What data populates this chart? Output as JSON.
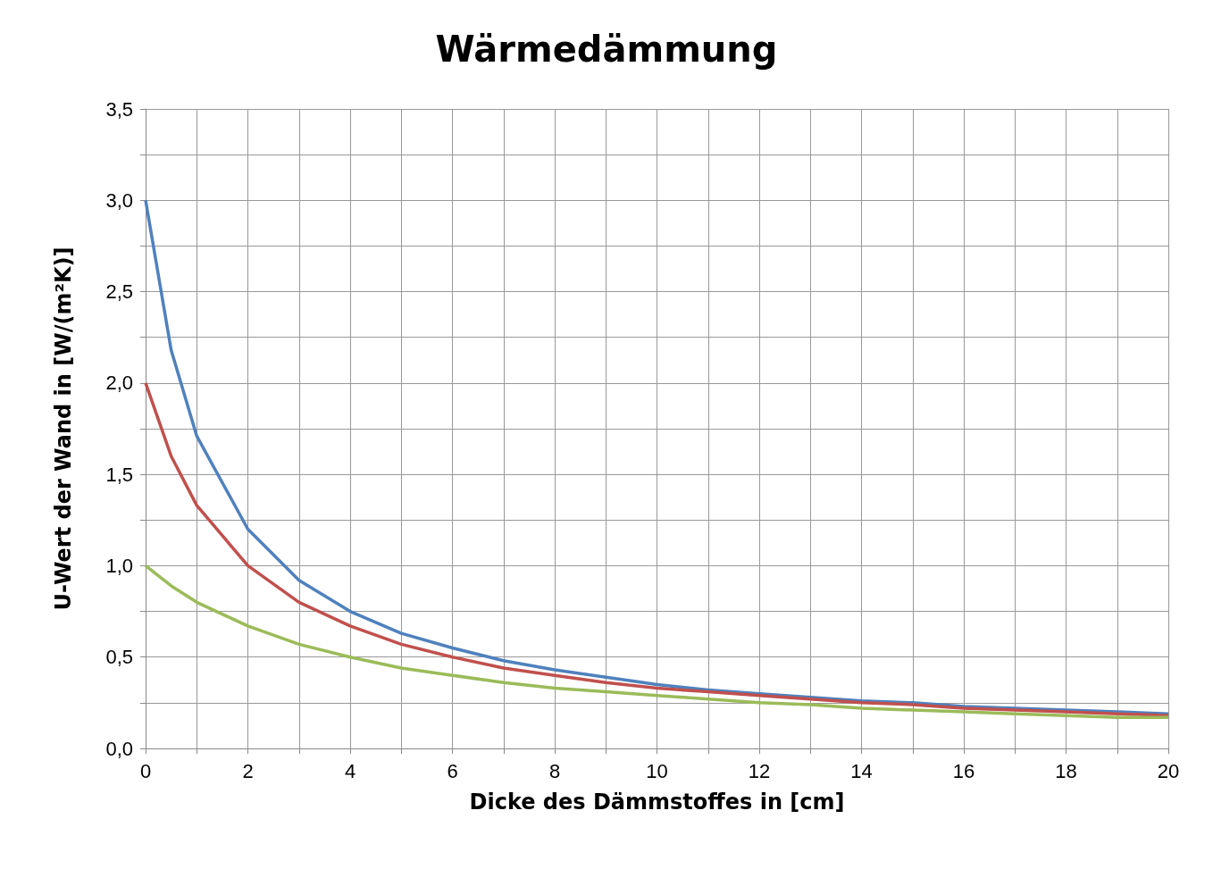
{
  "chart_data": {
    "type": "line",
    "title": "Wärmedämmung",
    "xlabel": "Dicke des Dämmstoffes in [cm]",
    "ylabel": "U-Wert der Wand in [W/(m²K)]",
    "x": [
      0,
      0.5,
      1,
      2,
      3,
      4,
      5,
      6,
      7,
      8,
      9,
      10,
      11,
      12,
      13,
      14,
      15,
      16,
      17,
      18,
      19,
      20
    ],
    "series": [
      {
        "color": "#4f81bd",
        "values": [
          3.0,
          2.18,
          1.71,
          1.2,
          0.92,
          0.75,
          0.63,
          0.55,
          0.48,
          0.43,
          0.39,
          0.35,
          0.32,
          0.3,
          0.28,
          0.26,
          0.25,
          0.23,
          0.22,
          0.21,
          0.2,
          0.19
        ]
      },
      {
        "color": "#c0504d",
        "values": [
          2.0,
          1.6,
          1.33,
          1.0,
          0.8,
          0.67,
          0.57,
          0.5,
          0.44,
          0.4,
          0.36,
          0.33,
          0.31,
          0.29,
          0.27,
          0.25,
          0.24,
          0.22,
          0.21,
          0.2,
          0.19,
          0.18
        ]
      },
      {
        "color": "#9bbb59",
        "values": [
          1.0,
          0.89,
          0.8,
          0.67,
          0.57,
          0.5,
          0.44,
          0.4,
          0.36,
          0.33,
          0.31,
          0.29,
          0.27,
          0.25,
          0.24,
          0.22,
          0.21,
          0.2,
          0.19,
          0.18,
          0.17,
          0.17
        ]
      }
    ],
    "xlim": [
      0,
      20
    ],
    "xticks": [
      0,
      {
        "value": 1,
        "label": null
      },
      2,
      {
        "value": 3,
        "label": null
      },
      4,
      {
        "value": 5,
        "label": null
      },
      6,
      {
        "value": 7,
        "label": null
      },
      8,
      {
        "value": 9,
        "label": null
      },
      10,
      {
        "value": 11,
        "label": null
      },
      12,
      {
        "value": 13,
        "label": null
      },
      14,
      {
        "value": 15,
        "label": null
      },
      16,
      {
        "value": 17,
        "label": null
      },
      18,
      {
        "value": 19,
        "label": null
      },
      20
    ],
    "ylim": [
      0,
      3.5
    ],
    "yticks": [
      {
        "value": 0,
        "label": "0,0"
      },
      {
        "value": 0.25,
        "label": null
      },
      {
        "value": 0.5,
        "label": "0,5"
      },
      {
        "value": 0.75,
        "label": null
      },
      {
        "value": 1,
        "label": "1,0"
      },
      {
        "value": 1.25,
        "label": null
      },
      {
        "value": 1.5,
        "label": "1,5"
      },
      {
        "value": 1.75,
        "label": null
      },
      {
        "value": 2,
        "label": "2,0"
      },
      {
        "value": 2.25,
        "label": null
      },
      {
        "value": 2.5,
        "label": "2,5"
      },
      {
        "value": 2.75,
        "label": null
      },
      {
        "value": 3,
        "label": "3,0"
      },
      {
        "value": 3.25,
        "label": null
      },
      {
        "value": 3.5,
        "label": "3,5"
      }
    ],
    "grid": true,
    "marker": "none",
    "line_style": "solid"
  }
}
